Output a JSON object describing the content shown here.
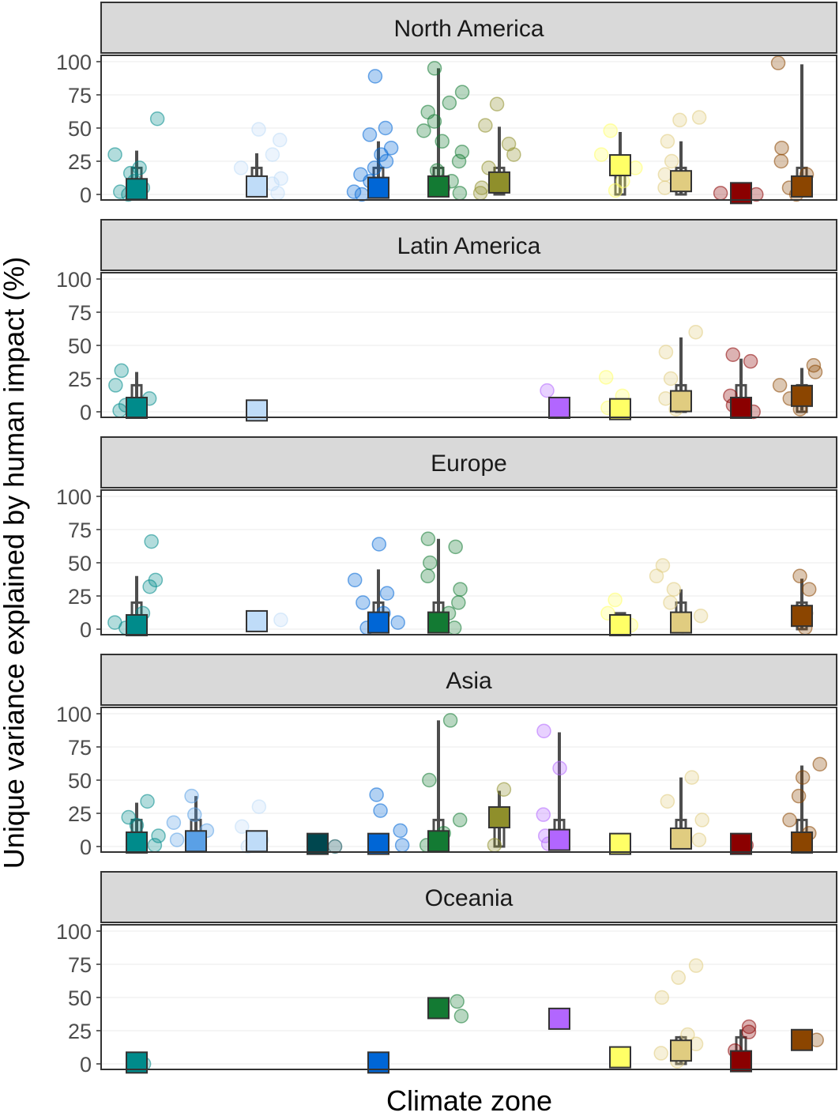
{
  "chart_data": {
    "type": "scatter",
    "ylabel": "Unique variance explained by human impact (%)",
    "xlabel": "Climate zone",
    "ylim": [
      0,
      100
    ],
    "yticks": [
      0,
      25,
      50,
      75,
      100
    ],
    "grid": true,
    "legend": "none",
    "zones": [
      {
        "color": "#008b8b"
      },
      {
        "color": "#5aa0e6"
      },
      {
        "color": "#bfdcf8"
      },
      {
        "color": "#00474f"
      },
      {
        "color": "#0066d6"
      },
      {
        "color": "#137a33"
      },
      {
        "color": "#8f8f2b"
      },
      {
        "color": "#b266ff"
      },
      {
        "color": "#ffff66"
      },
      {
        "color": "#e0cc80"
      },
      {
        "color": "#8b0000"
      },
      {
        "color": "#8b4500"
      }
    ],
    "panels": [
      {
        "name": "North America",
        "medians": [
          {
            "zone": 0,
            "value": 4
          },
          {
            "zone": 2,
            "value": 6
          },
          {
            "zone": 4,
            "value": 5
          },
          {
            "zone": 5,
            "value": 6
          },
          {
            "zone": 6,
            "value": 9
          },
          {
            "zone": 8,
            "value": 22
          },
          {
            "zone": 9,
            "value": 10
          },
          {
            "zone": 10,
            "value": 1
          },
          {
            "zone": 11,
            "value": 6
          }
        ],
        "points": [
          [
            0,
            57
          ],
          [
            0,
            30
          ],
          [
            0,
            20
          ],
          [
            0,
            16
          ],
          [
            0,
            10
          ],
          [
            0,
            5
          ],
          [
            0,
            2
          ],
          [
            0,
            0
          ],
          [
            2,
            49
          ],
          [
            2,
            41
          ],
          [
            2,
            30
          ],
          [
            2,
            20
          ],
          [
            2,
            12
          ],
          [
            2,
            8
          ],
          [
            2,
            4
          ],
          [
            2,
            1
          ],
          [
            4,
            89
          ],
          [
            4,
            50
          ],
          [
            4,
            45
          ],
          [
            4,
            35
          ],
          [
            4,
            30
          ],
          [
            4,
            25
          ],
          [
            4,
            20
          ],
          [
            4,
            15
          ],
          [
            4,
            10
          ],
          [
            4,
            5
          ],
          [
            4,
            2
          ],
          [
            4,
            0
          ],
          [
            5,
            95
          ],
          [
            5,
            77
          ],
          [
            5,
            69
          ],
          [
            5,
            62
          ],
          [
            5,
            55
          ],
          [
            5,
            48
          ],
          [
            5,
            40
          ],
          [
            5,
            32
          ],
          [
            5,
            25
          ],
          [
            5,
            18
          ],
          [
            5,
            10
          ],
          [
            5,
            5
          ],
          [
            5,
            1
          ],
          [
            6,
            68
          ],
          [
            6,
            52
          ],
          [
            6,
            38
          ],
          [
            6,
            30
          ],
          [
            6,
            20
          ],
          [
            6,
            12
          ],
          [
            6,
            5
          ],
          [
            6,
            1
          ],
          [
            8,
            48
          ],
          [
            8,
            30
          ],
          [
            8,
            20
          ],
          [
            8,
            10
          ],
          [
            8,
            3
          ],
          [
            9,
            58
          ],
          [
            9,
            56
          ],
          [
            9,
            40
          ],
          [
            9,
            25
          ],
          [
            9,
            15
          ],
          [
            9,
            5
          ],
          [
            10,
            1
          ],
          [
            10,
            0
          ],
          [
            11,
            99
          ],
          [
            11,
            35
          ],
          [
            11,
            25
          ],
          [
            11,
            15
          ],
          [
            11,
            5
          ],
          [
            11,
            0
          ]
        ],
        "whiskers": [
          {
            "zone": 0,
            "low": 0,
            "high": 33
          },
          {
            "zone": 2,
            "low": 0,
            "high": 31
          },
          {
            "zone": 4,
            "low": 0,
            "high": 40
          },
          {
            "zone": 5,
            "low": 0,
            "high": 95
          },
          {
            "zone": 6,
            "low": 0,
            "high": 51
          },
          {
            "zone": 8,
            "low": 1,
            "high": 47
          },
          {
            "zone": 9,
            "low": 0,
            "high": 40
          },
          {
            "zone": 11,
            "low": 0,
            "high": 98
          }
        ]
      },
      {
        "name": "Latin America",
        "medians": [
          {
            "zone": 0,
            "value": 3
          },
          {
            "zone": 2,
            "value": 1
          },
          {
            "zone": 7,
            "value": 3
          },
          {
            "zone": 8,
            "value": 2
          },
          {
            "zone": 9,
            "value": 8
          },
          {
            "zone": 10,
            "value": 3
          },
          {
            "zone": 11,
            "value": 12
          }
        ],
        "points": [
          [
            0,
            31
          ],
          [
            0,
            20
          ],
          [
            0,
            10
          ],
          [
            0,
            5
          ],
          [
            0,
            1
          ],
          [
            7,
            16
          ],
          [
            7,
            0
          ],
          [
            8,
            26
          ],
          [
            8,
            12
          ],
          [
            8,
            3
          ],
          [
            9,
            60
          ],
          [
            9,
            45
          ],
          [
            9,
            25
          ],
          [
            9,
            10
          ],
          [
            9,
            2
          ],
          [
            10,
            43
          ],
          [
            10,
            38
          ],
          [
            10,
            12
          ],
          [
            10,
            5
          ],
          [
            10,
            0
          ],
          [
            11,
            35
          ],
          [
            11,
            30
          ],
          [
            11,
            20
          ],
          [
            11,
            10
          ],
          [
            11,
            2
          ]
        ],
        "whiskers": [
          {
            "zone": 0,
            "low": 0,
            "high": 30
          },
          {
            "zone": 9,
            "low": 0,
            "high": 56
          },
          {
            "zone": 10,
            "low": 0,
            "high": 40
          },
          {
            "zone": 11,
            "low": 1,
            "high": 33
          }
        ]
      },
      {
        "name": "Europe",
        "medians": [
          {
            "zone": 0,
            "value": 3
          },
          {
            "zone": 2,
            "value": 6
          },
          {
            "zone": 4,
            "value": 5
          },
          {
            "zone": 5,
            "value": 5
          },
          {
            "zone": 8,
            "value": 3
          },
          {
            "zone": 9,
            "value": 5
          },
          {
            "zone": 11,
            "value": 10
          }
        ],
        "points": [
          [
            0,
            66
          ],
          [
            0,
            37
          ],
          [
            0,
            32
          ],
          [
            0,
            12
          ],
          [
            0,
            5
          ],
          [
            0,
            1
          ],
          [
            2,
            7
          ],
          [
            4,
            64
          ],
          [
            4,
            37
          ],
          [
            4,
            27
          ],
          [
            4,
            20
          ],
          [
            4,
            12
          ],
          [
            4,
            5
          ],
          [
            4,
            1
          ],
          [
            5,
            68
          ],
          [
            5,
            62
          ],
          [
            5,
            50
          ],
          [
            5,
            40
          ],
          [
            5,
            30
          ],
          [
            5,
            20
          ],
          [
            5,
            12
          ],
          [
            5,
            5
          ],
          [
            5,
            1
          ],
          [
            8,
            22
          ],
          [
            8,
            12
          ],
          [
            8,
            3
          ],
          [
            9,
            48
          ],
          [
            9,
            40
          ],
          [
            9,
            30
          ],
          [
            9,
            20
          ],
          [
            9,
            10
          ],
          [
            9,
            2
          ],
          [
            11,
            40
          ],
          [
            11,
            30
          ],
          [
            11,
            12
          ],
          [
            11,
            1
          ]
        ],
        "whiskers": [
          {
            "zone": 0,
            "low": 0,
            "high": 40
          },
          {
            "zone": 4,
            "low": 0,
            "high": 45
          },
          {
            "zone": 5,
            "low": 0,
            "high": 68
          },
          {
            "zone": 8,
            "low": 0,
            "high": 12
          },
          {
            "zone": 9,
            "low": 0,
            "high": 30
          },
          {
            "zone": 11,
            "low": 0,
            "high": 38
          }
        ]
      },
      {
        "name": "Asia",
        "medians": [
          {
            "zone": 0,
            "value": 3
          },
          {
            "zone": 1,
            "value": 4
          },
          {
            "zone": 2,
            "value": 4
          },
          {
            "zone": 3,
            "value": 2
          },
          {
            "zone": 4,
            "value": 2
          },
          {
            "zone": 5,
            "value": 4
          },
          {
            "zone": 6,
            "value": 22
          },
          {
            "zone": 7,
            "value": 5
          },
          {
            "zone": 8,
            "value": 2
          },
          {
            "zone": 9,
            "value": 6
          },
          {
            "zone": 10,
            "value": 2
          },
          {
            "zone": 11,
            "value": 3
          }
        ],
        "points": [
          [
            0,
            34
          ],
          [
            0,
            22
          ],
          [
            0,
            16
          ],
          [
            0,
            8
          ],
          [
            0,
            1
          ],
          [
            1,
            38
          ],
          [
            1,
            24
          ],
          [
            1,
            18
          ],
          [
            1,
            12
          ],
          [
            1,
            5
          ],
          [
            1,
            1
          ],
          [
            2,
            30
          ],
          [
            2,
            15
          ],
          [
            2,
            5
          ],
          [
            2,
            0
          ],
          [
            3,
            0
          ],
          [
            4,
            39
          ],
          [
            4,
            27
          ],
          [
            4,
            12
          ],
          [
            4,
            1
          ],
          [
            5,
            95
          ],
          [
            5,
            50
          ],
          [
            5,
            20
          ],
          [
            5,
            10
          ],
          [
            5,
            1
          ],
          [
            6,
            43
          ],
          [
            6,
            1
          ],
          [
            7,
            87
          ],
          [
            7,
            59
          ],
          [
            7,
            24
          ],
          [
            7,
            8
          ],
          [
            7,
            2
          ],
          [
            8,
            1
          ],
          [
            9,
            52
          ],
          [
            9,
            34
          ],
          [
            9,
            20
          ],
          [
            9,
            5
          ],
          [
            10,
            1
          ],
          [
            11,
            62
          ],
          [
            11,
            52
          ],
          [
            11,
            38
          ],
          [
            11,
            20
          ],
          [
            11,
            10
          ],
          [
            11,
            1
          ]
        ],
        "whiskers": [
          {
            "zone": 0,
            "low": 0,
            "high": 33
          },
          {
            "zone": 1,
            "low": 0,
            "high": 38
          },
          {
            "zone": 5,
            "low": 0,
            "high": 95
          },
          {
            "zone": 6,
            "low": 0,
            "high": 42
          },
          {
            "zone": 7,
            "low": 0,
            "high": 86
          },
          {
            "zone": 9,
            "low": 0,
            "high": 52
          },
          {
            "zone": 11,
            "low": 0,
            "high": 61
          }
        ]
      },
      {
        "name": "Oceania",
        "medians": [
          {
            "zone": 0,
            "value": 1
          },
          {
            "zone": 4,
            "value": 1
          },
          {
            "zone": 5,
            "value": 42
          },
          {
            "zone": 7,
            "value": 34
          },
          {
            "zone": 8,
            "value": 5
          },
          {
            "zone": 9,
            "value": 10
          },
          {
            "zone": 10,
            "value": 2
          },
          {
            "zone": 11,
            "value": 18
          }
        ],
        "points": [
          [
            0,
            0
          ],
          [
            5,
            47
          ],
          [
            5,
            36
          ],
          [
            8,
            5
          ],
          [
            9,
            74
          ],
          [
            9,
            65
          ],
          [
            9,
            50
          ],
          [
            9,
            22
          ],
          [
            9,
            15
          ],
          [
            9,
            8
          ],
          [
            9,
            2
          ],
          [
            10,
            28
          ],
          [
            10,
            24
          ],
          [
            10,
            10
          ],
          [
            10,
            1
          ],
          [
            11,
            18
          ]
        ],
        "whiskers": [
          {
            "zone": 9,
            "low": 0,
            "high": 21
          },
          {
            "zone": 10,
            "low": 0,
            "high": 26
          }
        ]
      }
    ]
  }
}
